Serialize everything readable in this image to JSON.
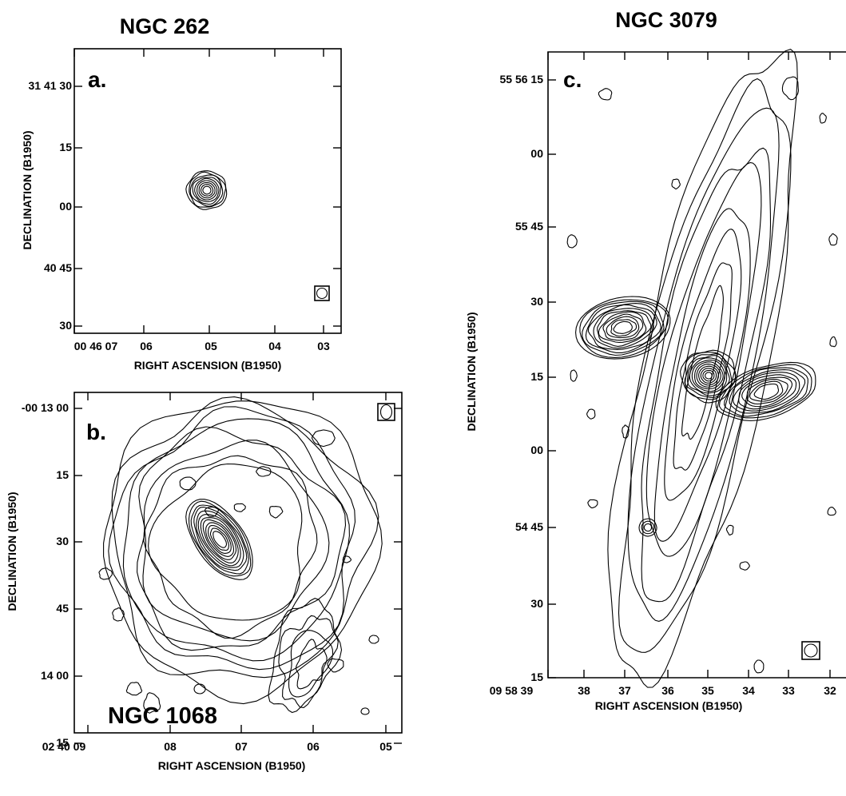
{
  "chart_data": [
    {
      "type": "contour",
      "panel": "a.",
      "title": "NGC 262",
      "xlabel": "RIGHT ASCENSION (B1950)",
      "ylabel": "DECLINATION (B1950)",
      "x_ticks": [
        "00 46 07",
        "06",
        "05",
        "04",
        "03"
      ],
      "y_ticks": [
        "31 41 30",
        "15",
        "00",
        "40 45",
        "30"
      ],
      "features": [
        {
          "kind": "core",
          "ra_sec": 4.9,
          "dec_arcsec_offset": 4,
          "levels": 9
        }
      ]
    },
    {
      "type": "contour",
      "panel": "b.",
      "title": "NGC 1068",
      "xlabel": "RIGHT ASCENSION (B1950)",
      "ylabel": "DECLINATION (B1950)",
      "x_ticks": [
        "02 40 09",
        "08",
        "07",
        "06",
        "05"
      ],
      "y_ticks": [
        "-00 13 00",
        "15",
        "30",
        "45",
        "14 00",
        "15"
      ],
      "features": [
        {
          "kind": "inner-oval",
          "ra_sec": 7.2,
          "dec": "-00 13 32",
          "levels": 12
        },
        {
          "kind": "diffuse-disk",
          "ra_sec": 7.0,
          "dec": "-00 13 38",
          "levels": 8
        }
      ]
    },
    {
      "type": "contour",
      "panel": "c.",
      "title": "NGC 3079",
      "xlabel": "RIGHT ASCENSION (B1950)",
      "ylabel": "DECLINATION (B1950)",
      "x_ticks": [
        "09 58 39",
        "38",
        "37",
        "36",
        "35",
        "34",
        "33",
        "32"
      ],
      "y_ticks": [
        "55 56 15",
        "00",
        "55 45",
        "30",
        "15",
        "00",
        "54 45",
        "30",
        "15"
      ],
      "features": [
        {
          "kind": "nucleus",
          "ra_sec": 34.9,
          "dec": "55 55 15",
          "levels": 12
        },
        {
          "kind": "west-lobe",
          "ra_sec": 36.6,
          "dec": "55 55 25",
          "levels": 12
        },
        {
          "kind": "east-lobe",
          "ra_sec": 33.0,
          "dec": "55 55 10",
          "levels": 10
        },
        {
          "kind": "compact-source",
          "ra_sec": 36.3,
          "dec": "55 54 45",
          "levels": 3
        }
      ]
    }
  ]
}
